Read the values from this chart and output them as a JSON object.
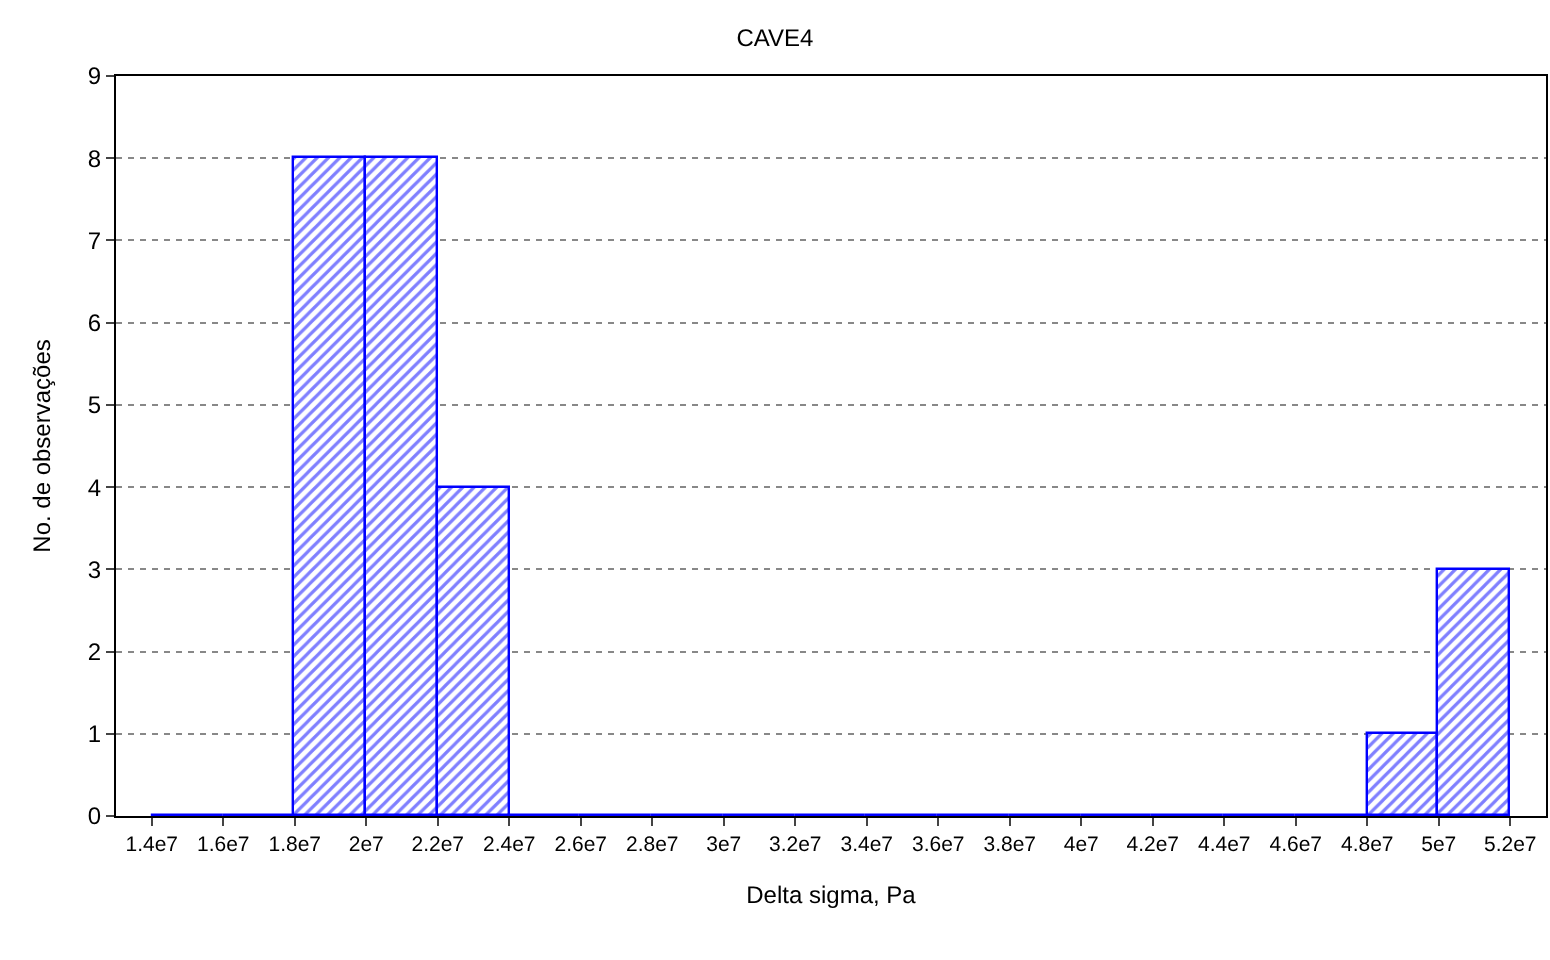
{
  "chart_data": {
    "type": "histogram",
    "title": "CAVE4",
    "xlabel": "Delta sigma, Pa",
    "ylabel": "No. de observações",
    "bins": [
      14000000,
      16000000,
      18000000,
      20000000,
      22000000,
      24000000,
      26000000,
      28000000,
      30000000,
      32000000,
      34000000,
      36000000,
      38000000,
      40000000,
      42000000,
      44000000,
      46000000,
      48000000,
      50000000,
      52000000
    ],
    "values": [
      0,
      0,
      8,
      8,
      4,
      0,
      0,
      0,
      0,
      0,
      0,
      0,
      0,
      0,
      0,
      0,
      0,
      1,
      3
    ],
    "color": "#0000ff",
    "xlim": [
      13000000,
      53000000
    ],
    "xticks": [
      {
        "value": 14000000,
        "label": "1.4e7"
      },
      {
        "value": 16000000,
        "label": "1.6e7"
      },
      {
        "value": 18000000,
        "label": "1.8e7"
      },
      {
        "value": 20000000,
        "label": "2e7"
      },
      {
        "value": 22000000,
        "label": "2.2e7"
      },
      {
        "value": 24000000,
        "label": "2.4e7"
      },
      {
        "value": 26000000,
        "label": "2.6e7"
      },
      {
        "value": 28000000,
        "label": "2.8e7"
      },
      {
        "value": 30000000,
        "label": "3e7"
      },
      {
        "value": 32000000,
        "label": "3.2e7"
      },
      {
        "value": 34000000,
        "label": "3.4e7"
      },
      {
        "value": 36000000,
        "label": "3.6e7"
      },
      {
        "value": 38000000,
        "label": "3.8e7"
      },
      {
        "value": 40000000,
        "label": "4e7"
      },
      {
        "value": 42000000,
        "label": "4.2e7"
      },
      {
        "value": 44000000,
        "label": "4.4e7"
      },
      {
        "value": 46000000,
        "label": "4.6e7"
      },
      {
        "value": 48000000,
        "label": "4.8e7"
      },
      {
        "value": 50000000,
        "label": "5e7"
      },
      {
        "value": 52000000,
        "label": "5.2e7"
      }
    ],
    "ylim": [
      0,
      9
    ],
    "yticks": [
      0,
      1,
      2,
      3,
      4,
      5,
      6,
      7,
      8,
      9
    ],
    "grid": "y"
  }
}
